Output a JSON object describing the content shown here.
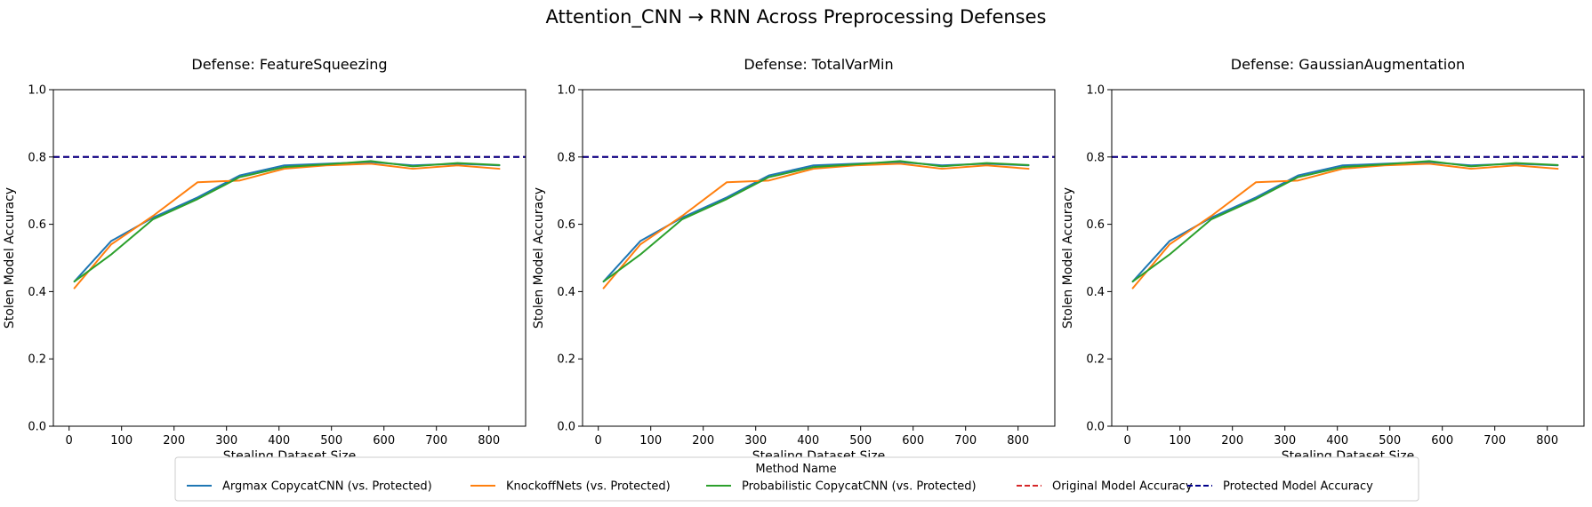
{
  "figure_title": "Attention_CNN → RNN Across Preprocessing Defenses",
  "legend": {
    "title": "Method Name",
    "entries": [
      {
        "label": "Argmax CopycatCNN (vs. Protected)",
        "color": "#1f77b4",
        "style": "solid"
      },
      {
        "label": "KnockoffNets (vs. Protected)",
        "color": "#ff7f0e",
        "style": "solid"
      },
      {
        "label": "Probabilistic CopycatCNN (vs. Protected)",
        "color": "#2ca02c",
        "style": "solid"
      },
      {
        "label": "Original Model Accuracy",
        "color": "#d62728",
        "style": "dashed"
      },
      {
        "label": "Protected Model Accuracy",
        "color": "#00008b",
        "style": "dashed"
      }
    ],
    "placement": "bottom-center"
  },
  "chart_data": [
    {
      "type": "line",
      "title": "Defense: FeatureSqueezing",
      "xlabel": "Stealing Dataset Size",
      "ylabel": "Stolen Model Accuracy",
      "xlim": [
        -30,
        870
      ],
      "ylim": [
        0.0,
        1.0
      ],
      "xticks": [
        0,
        100,
        200,
        300,
        400,
        500,
        600,
        700,
        800
      ],
      "yticks": [
        0.0,
        0.2,
        0.4,
        0.6,
        0.8,
        1.0
      ],
      "grid": false,
      "x": [
        10,
        80,
        160,
        245,
        325,
        410,
        490,
        575,
        655,
        740,
        820
      ],
      "series": [
        {
          "name": "Argmax CopycatCNN (vs. Protected)",
          "color": "#1f77b4",
          "values": [
            0.43,
            0.55,
            0.62,
            0.68,
            0.745,
            0.775,
            0.78,
            0.785,
            0.775,
            0.78,
            0.775
          ]
        },
        {
          "name": "KnockoffNets (vs. Protected)",
          "color": "#ff7f0e",
          "values": [
            0.41,
            0.54,
            0.625,
            0.725,
            0.73,
            0.765,
            0.775,
            0.78,
            0.765,
            0.775,
            0.765
          ]
        },
        {
          "name": "Probabilistic CopycatCNN (vs. Protected)",
          "color": "#2ca02c",
          "values": [
            0.43,
            0.51,
            0.615,
            0.675,
            0.74,
            0.77,
            0.778,
            0.788,
            0.772,
            0.782,
            0.776
          ]
        }
      ],
      "hlines": [
        {
          "name": "Original Model Accuracy",
          "value": 0.8,
          "color": "#d62728"
        },
        {
          "name": "Protected Model Accuracy",
          "value": 0.8,
          "color": "#00008b"
        }
      ]
    },
    {
      "type": "line",
      "title": "Defense: TotalVarMin",
      "xlabel": "Stealing Dataset Size",
      "ylabel": "Stolen Model Accuracy",
      "xlim": [
        -30,
        870
      ],
      "ylim": [
        0.0,
        1.0
      ],
      "xticks": [
        0,
        100,
        200,
        300,
        400,
        500,
        600,
        700,
        800
      ],
      "yticks": [
        0.0,
        0.2,
        0.4,
        0.6,
        0.8,
        1.0
      ],
      "grid": false,
      "x": [
        10,
        80,
        160,
        245,
        325,
        410,
        490,
        575,
        655,
        740,
        820
      ],
      "series": [
        {
          "name": "Argmax CopycatCNN (vs. Protected)",
          "color": "#1f77b4",
          "values": [
            0.43,
            0.55,
            0.62,
            0.68,
            0.745,
            0.775,
            0.78,
            0.785,
            0.775,
            0.78,
            0.775
          ]
        },
        {
          "name": "KnockoffNets (vs. Protected)",
          "color": "#ff7f0e",
          "values": [
            0.41,
            0.54,
            0.625,
            0.725,
            0.73,
            0.765,
            0.775,
            0.78,
            0.765,
            0.775,
            0.765
          ]
        },
        {
          "name": "Probabilistic CopycatCNN (vs. Protected)",
          "color": "#2ca02c",
          "values": [
            0.43,
            0.51,
            0.615,
            0.675,
            0.74,
            0.77,
            0.778,
            0.788,
            0.772,
            0.782,
            0.776
          ]
        }
      ],
      "hlines": [
        {
          "name": "Original Model Accuracy",
          "value": 0.8,
          "color": "#d62728"
        },
        {
          "name": "Protected Model Accuracy",
          "value": 0.8,
          "color": "#00008b"
        }
      ]
    },
    {
      "type": "line",
      "title": "Defense: GaussianAugmentation",
      "xlabel": "Stealing Dataset Size",
      "ylabel": "Stolen Model Accuracy",
      "xlim": [
        -30,
        870
      ],
      "ylim": [
        0.0,
        1.0
      ],
      "xticks": [
        0,
        100,
        200,
        300,
        400,
        500,
        600,
        700,
        800
      ],
      "yticks": [
        0.0,
        0.2,
        0.4,
        0.6,
        0.8,
        1.0
      ],
      "grid": false,
      "x": [
        10,
        80,
        160,
        245,
        325,
        410,
        490,
        575,
        655,
        740,
        820
      ],
      "series": [
        {
          "name": "Argmax CopycatCNN (vs. Protected)",
          "color": "#1f77b4",
          "values": [
            0.43,
            0.55,
            0.62,
            0.68,
            0.745,
            0.775,
            0.78,
            0.785,
            0.775,
            0.78,
            0.775
          ]
        },
        {
          "name": "KnockoffNets (vs. Protected)",
          "color": "#ff7f0e",
          "values": [
            0.41,
            0.54,
            0.625,
            0.725,
            0.73,
            0.765,
            0.775,
            0.78,
            0.765,
            0.775,
            0.765
          ]
        },
        {
          "name": "Probabilistic CopycatCNN (vs. Protected)",
          "color": "#2ca02c",
          "values": [
            0.43,
            0.51,
            0.615,
            0.675,
            0.74,
            0.77,
            0.778,
            0.788,
            0.772,
            0.782,
            0.776
          ]
        }
      ],
      "hlines": [
        {
          "name": "Original Model Accuracy",
          "value": 0.8,
          "color": "#d62728"
        },
        {
          "name": "Protected Model Accuracy",
          "value": 0.8,
          "color": "#00008b"
        }
      ]
    }
  ]
}
